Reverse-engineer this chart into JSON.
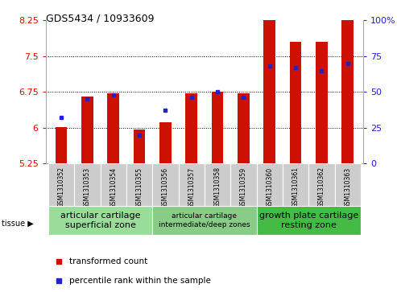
{
  "title": "GDS5434 / 10933609",
  "samples": [
    "GSM1310352",
    "GSM1310353",
    "GSM1310354",
    "GSM1310355",
    "GSM1310356",
    "GSM1310357",
    "GSM1310358",
    "GSM1310359",
    "GSM1310360",
    "GSM1310361",
    "GSM1310362",
    "GSM1310363"
  ],
  "red_values": [
    6.02,
    6.65,
    6.72,
    5.96,
    6.12,
    6.72,
    6.75,
    6.72,
    8.35,
    7.8,
    7.8,
    8.62
  ],
  "blue_values_pct": [
    32,
    45,
    48,
    20,
    37,
    46,
    50,
    46,
    68,
    67,
    65,
    70
  ],
  "ymin": 5.25,
  "ymax": 8.25,
  "yticks": [
    5.25,
    6.0,
    6.75,
    7.5,
    8.25
  ],
  "ytick_labels": [
    "5.25",
    "6",
    "6.75",
    "7.5",
    "8.25"
  ],
  "right_yticks": [
    0,
    25,
    50,
    75,
    100
  ],
  "right_ytick_labels": [
    "0",
    "25",
    "50",
    "75",
    "100%"
  ],
  "tissue_groups": [
    {
      "label": "articular cartilage\nsuperficial zone",
      "start": 0,
      "end": 4,
      "color": "#99dd99",
      "fontsize": 8
    },
    {
      "label": "articular cartilage\nintermediate/deep zones",
      "start": 4,
      "end": 8,
      "color": "#88cc88",
      "fontsize": 6.5
    },
    {
      "label": "growth plate cartilage\nresting zone",
      "start": 8,
      "end": 12,
      "color": "#44bb44",
      "fontsize": 8
    }
  ],
  "bar_color": "#cc1100",
  "blue_color": "#2222cc",
  "grid_color": "#000000",
  "tick_bg": "#cccccc",
  "red_label_color": "#cc1100",
  "blue_label_color": "#2222cc",
  "bar_width": 0.45
}
